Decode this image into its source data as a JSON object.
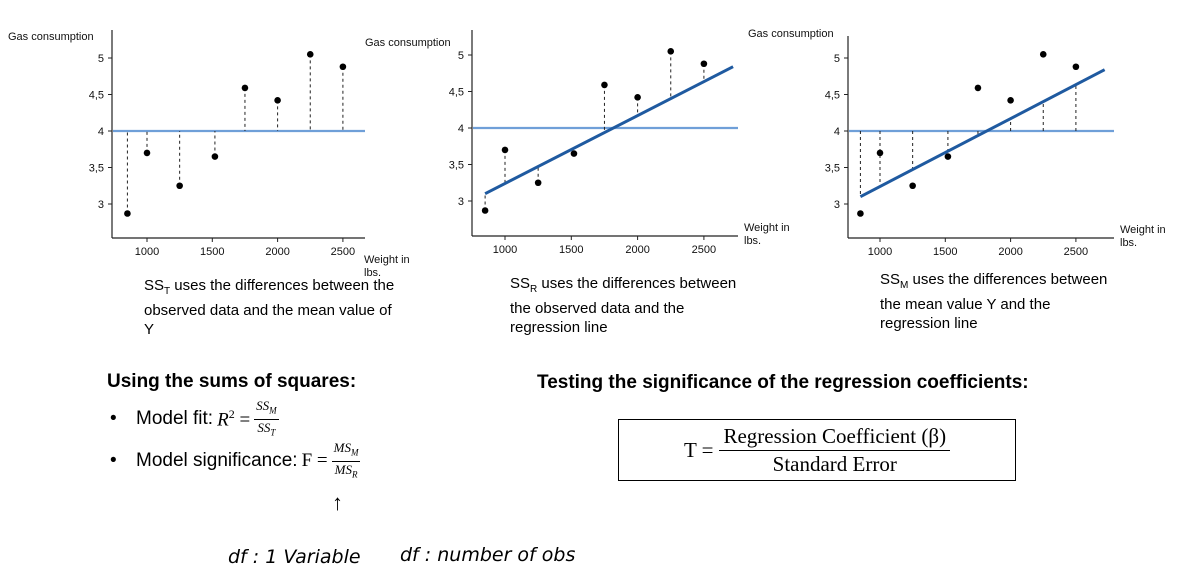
{
  "chart_data": [
    {
      "type": "scatter",
      "title": "",
      "ylabel": "Gas consumption",
      "xlabel": "Weight in lbs.",
      "xlim": [
        780,
        2760
      ],
      "ylim": [
        2.55,
        5.3
      ],
      "x_ticks": [
        1000,
        1500,
        2000,
        2500
      ],
      "x_tick_labels": [
        "1000",
        "1500",
        "2000",
        "2500"
      ],
      "y_ticks": [
        3,
        3.5,
        4,
        4.5,
        5
      ],
      "y_tick_labels": [
        "3",
        "3,5",
        "4",
        "4,5",
        "5"
      ],
      "points": [
        [
          850,
          2.87
        ],
        [
          1000,
          3.7
        ],
        [
          1250,
          3.25
        ],
        [
          1520,
          3.65
        ],
        [
          1750,
          4.59
        ],
        [
          2000,
          4.42
        ],
        [
          2250,
          5.05
        ],
        [
          2500,
          4.88
        ]
      ],
      "mean_line": 4.0,
      "regression_line": null,
      "residuals": "to_mean",
      "caption_main": "SS",
      "caption_sub": "T",
      "caption_rest": " uses the differences between the observed data and the mean value of Y"
    },
    {
      "type": "scatter",
      "title": "",
      "ylabel": "Gas consumption",
      "xlabel": "Weight in lbs.",
      "xlim": [
        780,
        2760
      ],
      "ylim": [
        2.55,
        5.3
      ],
      "x_ticks": [
        1000,
        1500,
        2000,
        2500
      ],
      "x_tick_labels": [
        "1000",
        "1500",
        "2000",
        "2500"
      ],
      "y_ticks": [
        3,
        3.5,
        4,
        4.5,
        5
      ],
      "y_tick_labels": [
        "3",
        "3,5",
        "4",
        "4,5",
        "5"
      ],
      "points": [
        [
          850,
          2.87
        ],
        [
          1000,
          3.7
        ],
        [
          1250,
          3.25
        ],
        [
          1520,
          3.65
        ],
        [
          1750,
          4.59
        ],
        [
          2000,
          4.42
        ],
        [
          2250,
          5.05
        ],
        [
          2500,
          4.88
        ]
      ],
      "mean_line": 4.0,
      "regression_line": [
        [
          850,
          3.1
        ],
        [
          2720,
          4.84
        ]
      ],
      "residuals": "to_regression",
      "caption_main": "SS",
      "caption_sub": "R",
      "caption_rest": " uses the differences between the observed data and the regression line"
    },
    {
      "type": "scatter",
      "title": "",
      "ylabel": "Gas consumption",
      "xlabel": "Weight in lbs.",
      "xlim": [
        780,
        2760
      ],
      "ylim": [
        2.55,
        5.3
      ],
      "x_ticks": [
        1000,
        1500,
        2000,
        2500
      ],
      "x_tick_labels": [
        "1000",
        "1500",
        "2000",
        "2500"
      ],
      "y_ticks": [
        3,
        3.5,
        4,
        4.5,
        5
      ],
      "y_tick_labels": [
        "3",
        "3,5",
        "4",
        "4,5",
        "5"
      ],
      "points": [
        [
          850,
          2.87
        ],
        [
          1000,
          3.7
        ],
        [
          1250,
          3.25
        ],
        [
          1520,
          3.65
        ],
        [
          1750,
          4.59
        ],
        [
          2000,
          4.42
        ],
        [
          2250,
          5.05
        ],
        [
          2500,
          4.88
        ]
      ],
      "mean_line": 4.0,
      "regression_line": [
        [
          850,
          3.1
        ],
        [
          2720,
          4.84
        ]
      ],
      "residuals": "mean_to_regression",
      "caption_main": "SS",
      "caption_sub": "M",
      "caption_rest": " uses the differences between the mean value Y and the regression line"
    }
  ],
  "colors": {
    "mean_line": "#6f9fd8",
    "regression_line": "#1f5aa0",
    "points": "#000000"
  },
  "left_section": {
    "heading": "Using the sums of squares:",
    "bullet1_label": "Model fit:",
    "bullet1_lhs": "R",
    "bullet1_exp": "2",
    "bullet1_num": "SS",
    "bullet1_num_sub": "M",
    "bullet1_den": "SS",
    "bullet1_den_sub": "T",
    "bullet2_label": "Model significance:",
    "bullet2_lhs": "F",
    "bullet2_num": "MS",
    "bullet2_num_sub": "M",
    "bullet2_den": "MS",
    "bullet2_den_sub": "R"
  },
  "right_section": {
    "heading": "Testing the significance of the regression coefficients:",
    "lhs": "T",
    "numerator": "Regression Coefficient (β)",
    "denominator": "Standard Error"
  },
  "handwriting": {
    "arrow": "↑",
    "note1": "df : 1 Variable",
    "note2": "df : number of obs"
  }
}
